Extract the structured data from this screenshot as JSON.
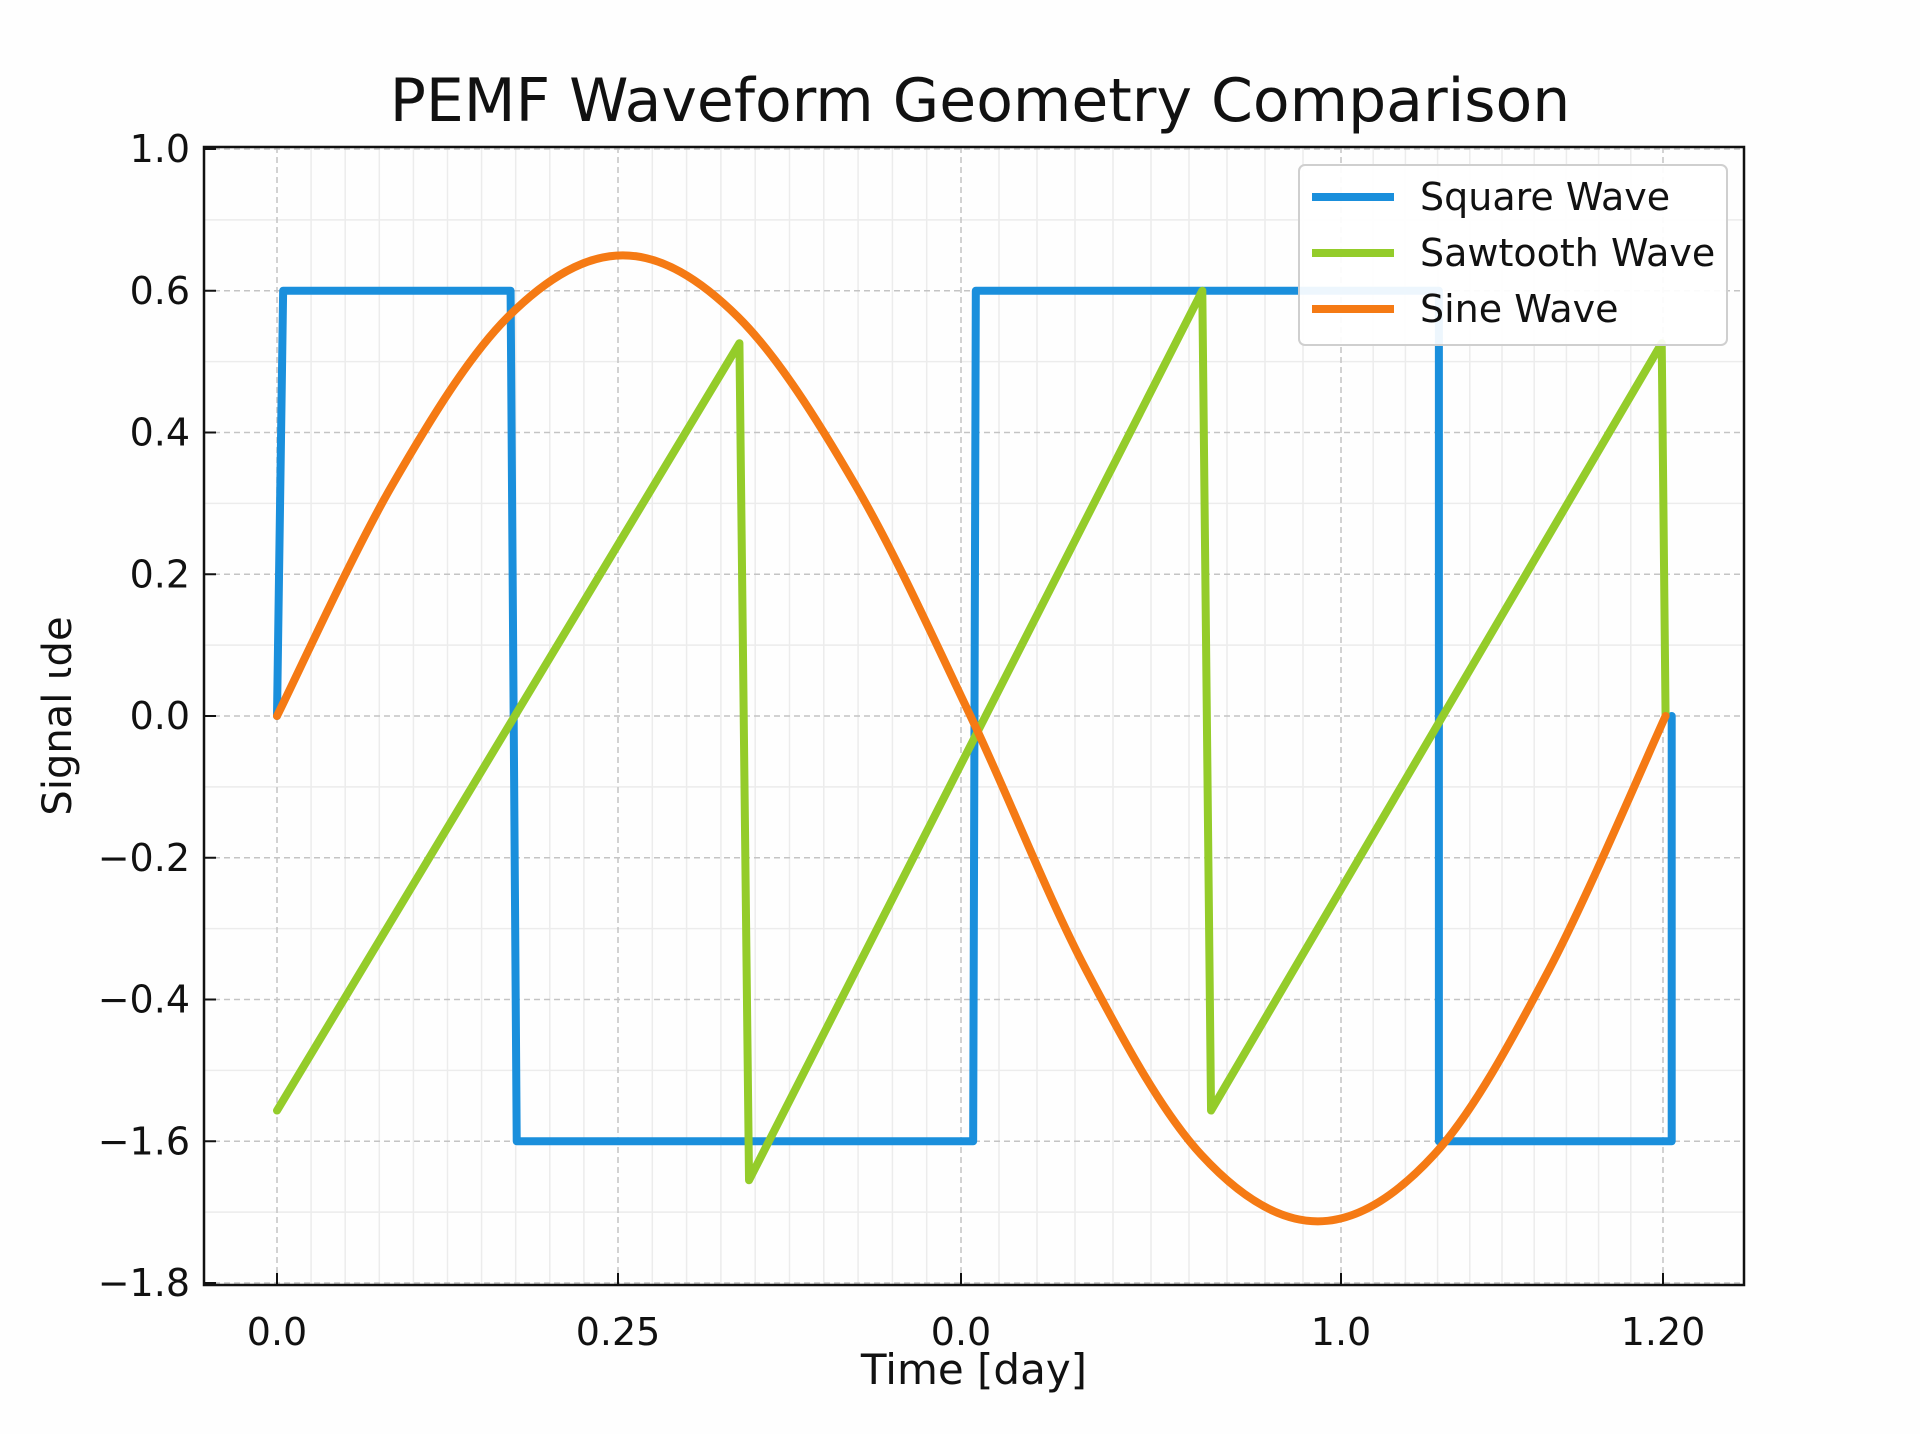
{
  "chart_data": {
    "type": "line",
    "title": "PEMF Waveform Geometry Comparison",
    "xlabel": "Time [day]",
    "ylabel": "Signal ιde",
    "x_ticks": [
      "0.0",
      "0.25",
      "0.0",
      "1.0",
      "1.20"
    ],
    "y_ticks": [
      "1.0",
      "0.6",
      "0.4",
      "0.2",
      "0.0",
      "−0.2",
      "−0.4",
      "−1.6",
      "−1.8"
    ],
    "y_tick_values": [
      1.0,
      0.6,
      0.4,
      0.2,
      0.0,
      -0.2,
      -0.4,
      -1.6,
      -1.8
    ],
    "x_note": "x values given in tick-index position along the axis (0 = first tick label, 4 = last tick label)",
    "grid": true,
    "legend_position": "top-right",
    "series": [
      {
        "name": "Square Wave",
        "color": "#1a8fdc",
        "shape": "polyline",
        "points": [
          [
            0,
            0
          ],
          [
            0.018,
            0.6
          ],
          [
            0.685,
            0.6
          ],
          [
            0.703,
            -1.6
          ],
          [
            2.032,
            -1.6
          ],
          [
            2.039,
            0.6
          ],
          [
            3.304,
            0.6
          ],
          [
            3.304,
            -1.6
          ],
          [
            4.027,
            -1.6
          ],
          [
            4.027,
            0
          ]
        ]
      },
      {
        "name": "Sawtooth Wave",
        "color": "#94cc2a",
        "shape": "polyline",
        "points": [
          [
            0,
            -1.34
          ],
          [
            1.354,
            0.526
          ],
          [
            1.382,
            -1.655
          ],
          [
            2.635,
            0.6
          ],
          [
            2.658,
            -1.34
          ],
          [
            3.996,
            0.526
          ],
          [
            4.008,
            0
          ]
        ]
      },
      {
        "name": "Sine Wave",
        "color": "#f57a14",
        "shape": "smooth",
        "points": [
          [
            0,
            0
          ],
          [
            0.337,
            0.325
          ],
          [
            0.677,
            0.563
          ],
          [
            1.014,
            0.7
          ],
          [
            1.35,
            0.563
          ],
          [
            1.693,
            0.325
          ],
          [
            2.025,
            0
          ],
          [
            2.329,
            -0.358
          ],
          [
            2.632,
            -1.619
          ],
          [
            2.939,
            -1.713
          ],
          [
            3.289,
            -1.619
          ],
          [
            3.646,
            -0.358
          ],
          [
            4.008,
            0
          ]
        ]
      }
    ]
  }
}
